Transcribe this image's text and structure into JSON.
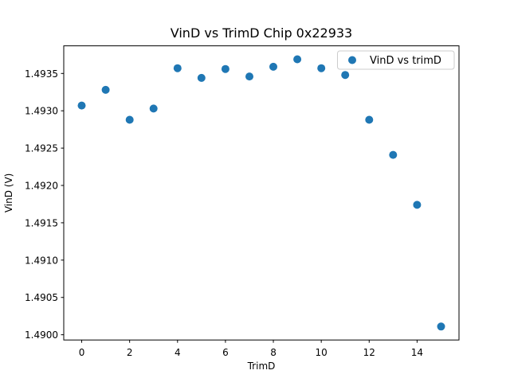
{
  "figure": {
    "background": "#ffffff"
  },
  "chart_data": {
    "type": "scatter",
    "title": "VinD vs TrimD Chip 0x22933",
    "xlabel": "TrimD",
    "ylabel": "VinD (V)",
    "legend": {
      "label": "VinD vs trimD",
      "position": "upper right"
    },
    "x": [
      0,
      1,
      2,
      3,
      4,
      5,
      6,
      7,
      8,
      9,
      10,
      11,
      12,
      13,
      14,
      15
    ],
    "y": [
      1.49307,
      1.49328,
      1.49288,
      1.49303,
      1.49357,
      1.49344,
      1.49356,
      1.49346,
      1.49359,
      1.49369,
      1.49357,
      1.49348,
      1.49288,
      1.49241,
      1.49174,
      1.49011
    ],
    "xlim": [
      -0.75,
      15.75
    ],
    "ylim": [
      1.48993,
      1.49387
    ],
    "xticks": [
      0,
      2,
      4,
      6,
      8,
      10,
      12,
      14
    ],
    "xtick_labels": [
      "0",
      "2",
      "4",
      "6",
      "8",
      "10",
      "12",
      "14"
    ],
    "yticks": [
      1.49,
      1.4905,
      1.491,
      1.4915,
      1.492,
      1.4925,
      1.493,
      1.4935
    ],
    "ytick_labels": [
      "1.4900",
      "1.4905",
      "1.4910",
      "1.4915",
      "1.4920",
      "1.4925",
      "1.4930",
      "1.4935"
    ],
    "grid": false,
    "marker": {
      "shape": "circle",
      "color": "#1f77b4",
      "radius_px": 5
    },
    "colors": {
      "spine": "#000000",
      "tick": "#000000",
      "legend_border": "#cccccc",
      "background": "#ffffff"
    }
  }
}
